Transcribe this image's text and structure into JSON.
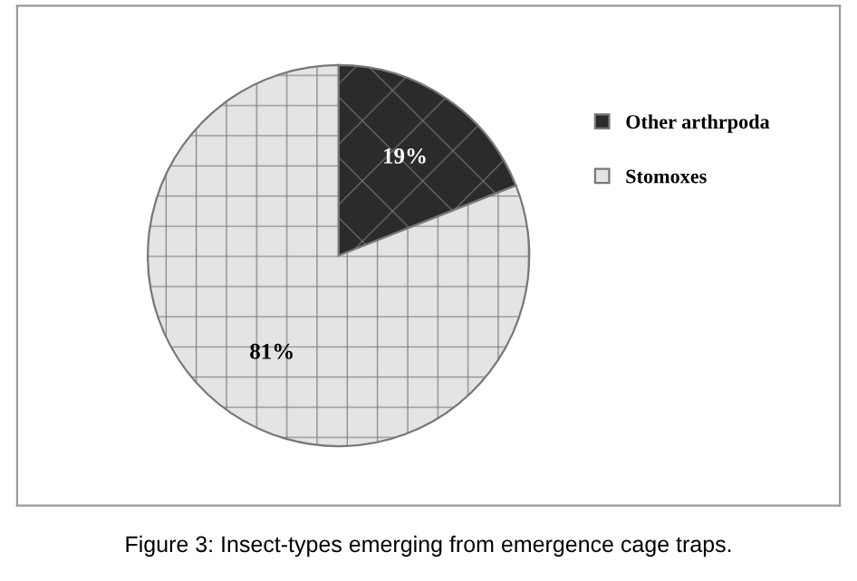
{
  "chart_data": {
    "type": "pie",
    "categories": [
      "Other arthrpoda",
      "Stomoxes"
    ],
    "values": [
      19,
      81
    ],
    "colors": [
      "#2b2b2b",
      "#e4e4e4"
    ],
    "value_labels": [
      "19%",
      "81%"
    ],
    "legend": "right",
    "annotations": [
      "Figure 3: Insect-types emerging from emergence cage traps."
    ]
  }
}
